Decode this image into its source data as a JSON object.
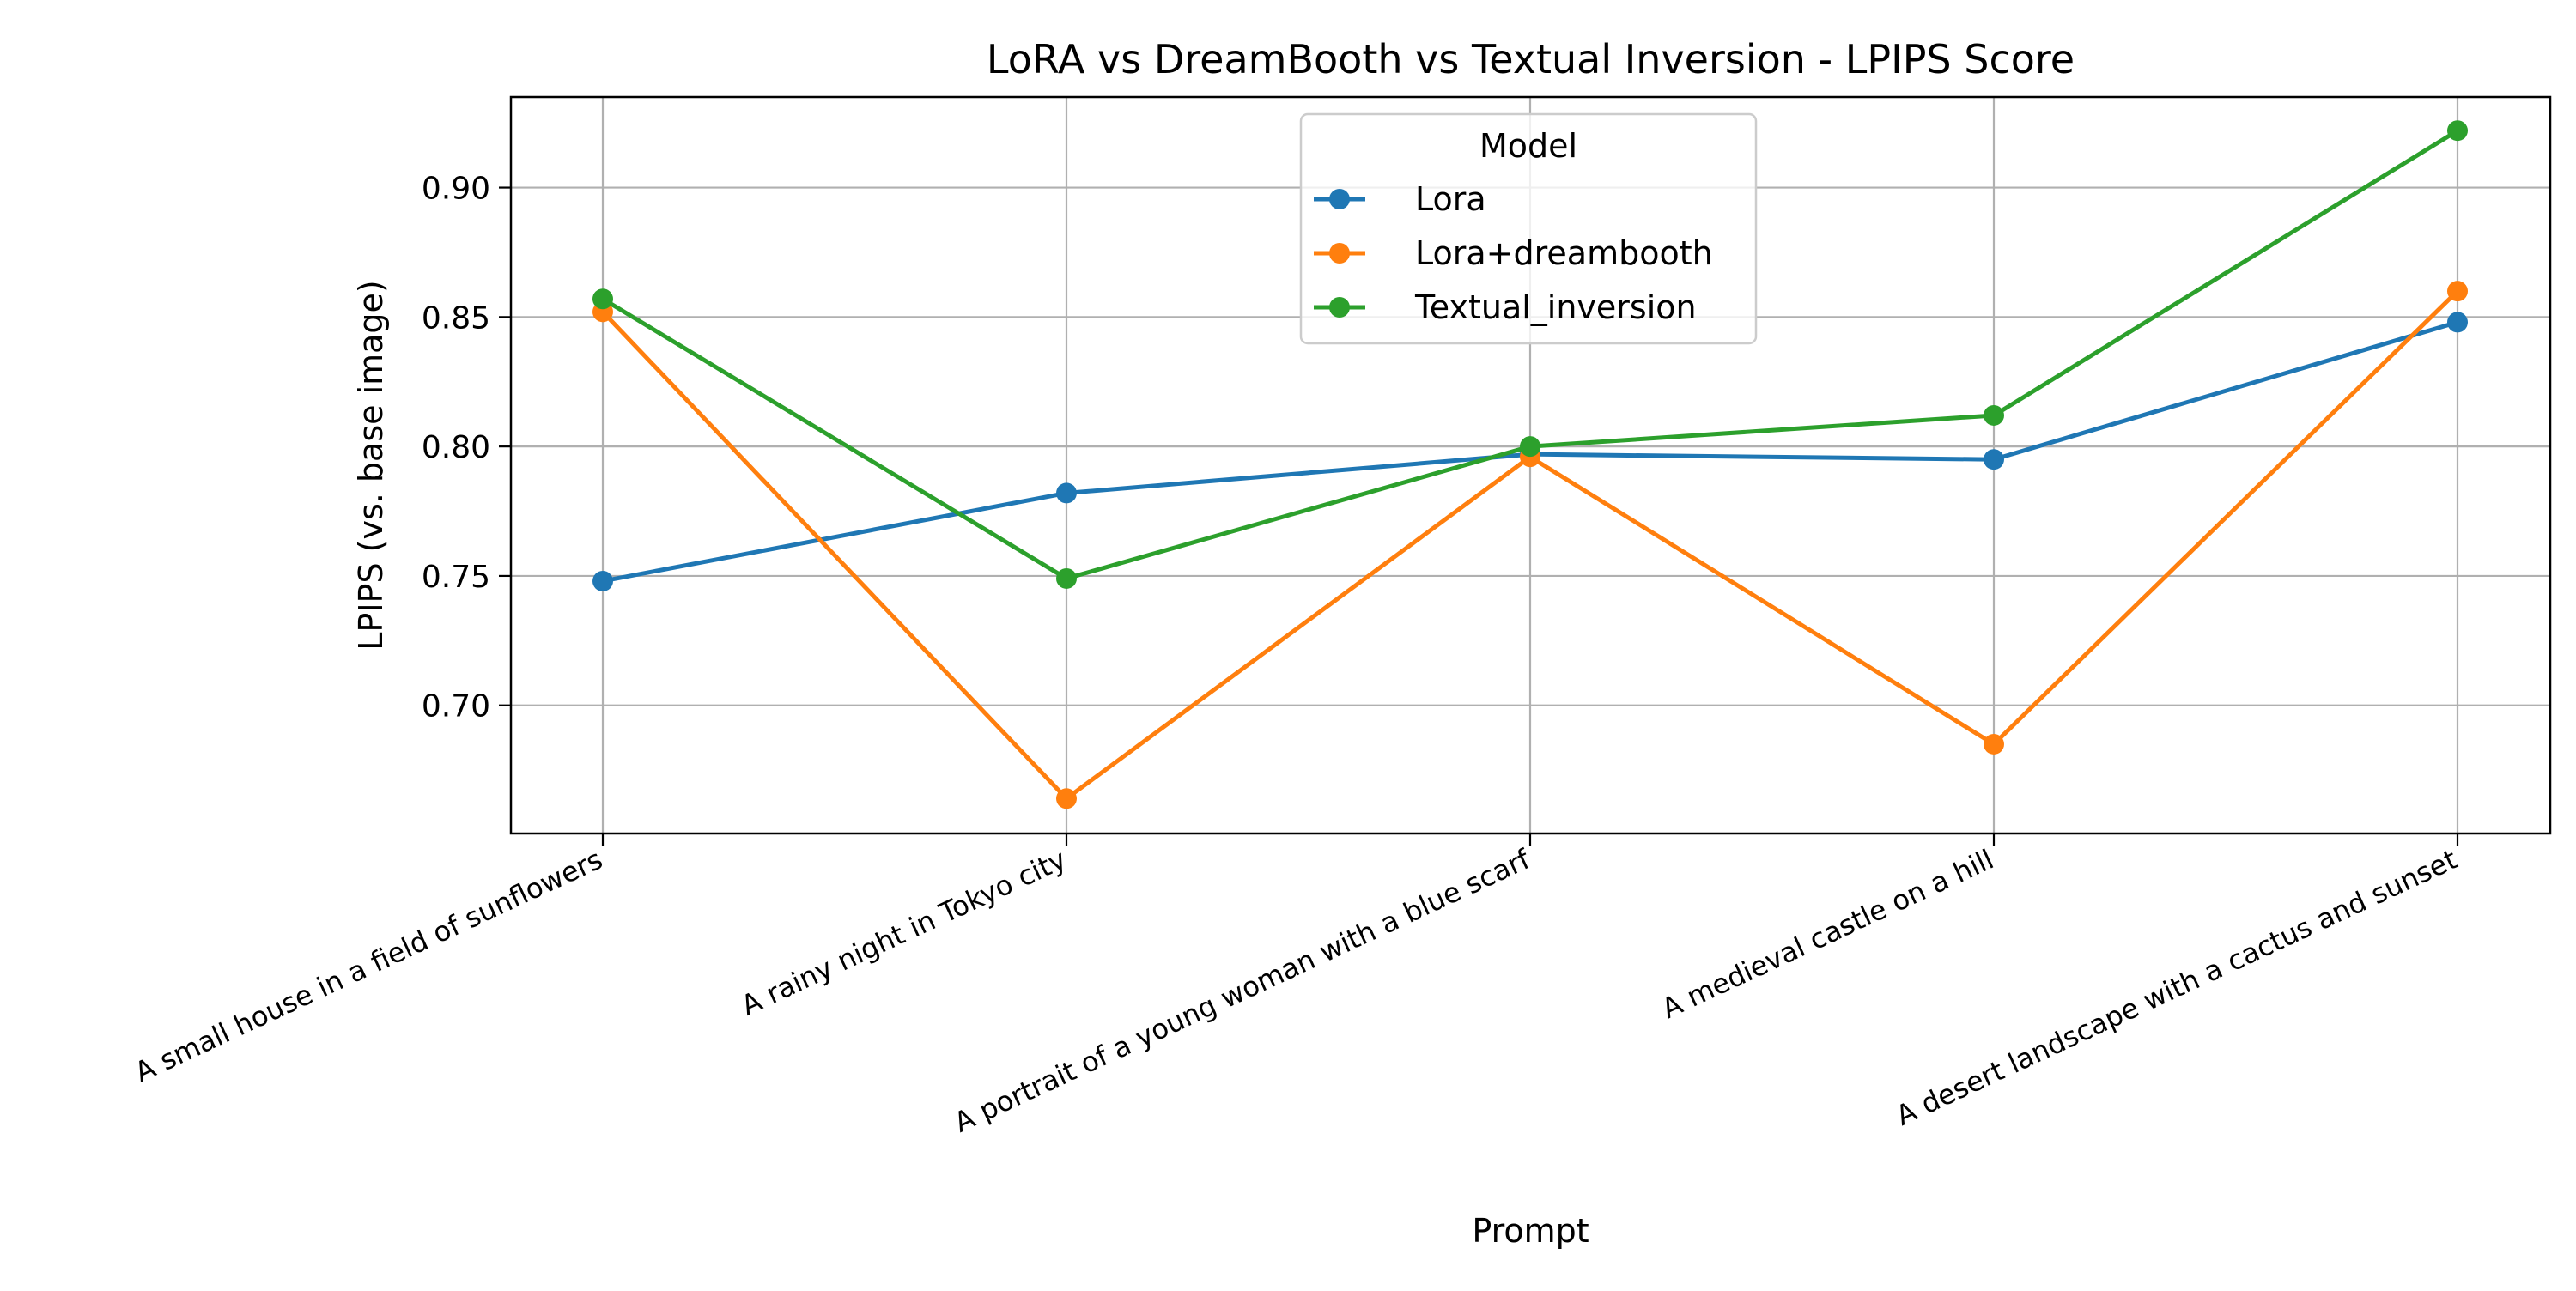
{
  "chart_data": {
    "type": "line",
    "title": "LoRA vs DreamBooth vs Textual Inversion - LPIPS Score",
    "xlabel": "Prompt",
    "ylabel": "LPIPS (vs. base image)",
    "categories": [
      "A small house in a field of sunflowers",
      "A rainy night in Tokyo city",
      "A portrait of a young woman with a blue scarf",
      "A medieval castle on a hill",
      "A desert landscape with a cactus and sunset"
    ],
    "series": [
      {
        "name": "Lora",
        "color": "#1f77b4",
        "values": [
          0.748,
          0.782,
          0.797,
          0.795,
          0.848
        ]
      },
      {
        "name": "Lora+dreambooth",
        "color": "#ff7f0e",
        "values": [
          0.852,
          0.664,
          0.796,
          0.685,
          0.86
        ]
      },
      {
        "name": "Textual_inversion",
        "color": "#2ca02c",
        "values": [
          0.857,
          0.749,
          0.8,
          0.812,
          0.922
        ]
      }
    ],
    "ylim": [
      0.6505,
      0.935
    ],
    "yticks": [
      0.7,
      0.75,
      0.8,
      0.85,
      0.9
    ],
    "ytick_labels": [
      "0.70",
      "0.75",
      "0.80",
      "0.85",
      "0.90"
    ],
    "grid": true,
    "legend": {
      "title": "Model",
      "placement": "upper center"
    }
  }
}
